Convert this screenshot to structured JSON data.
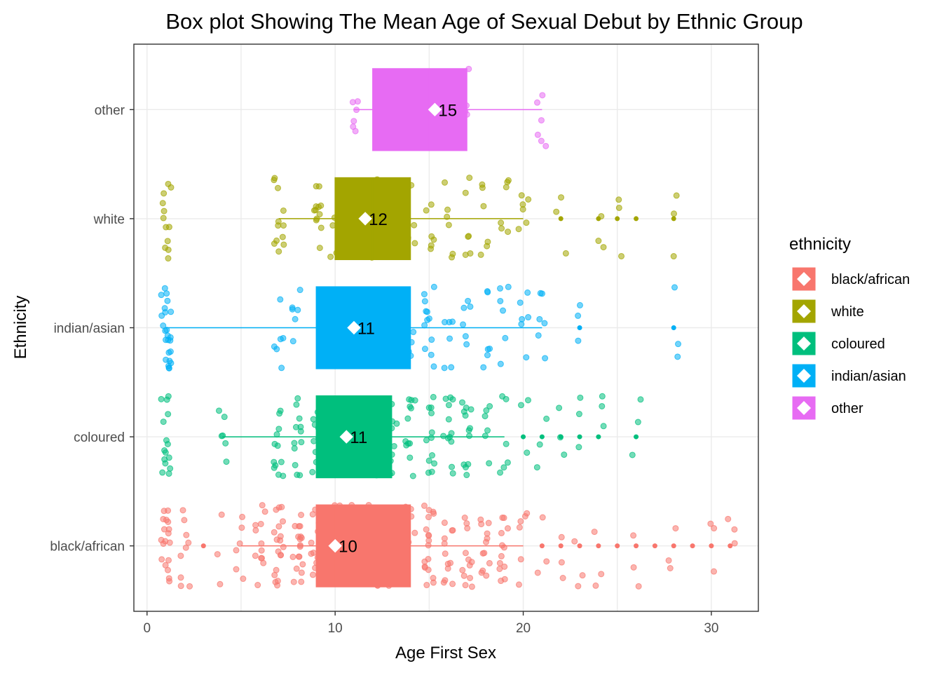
{
  "chart_data": {
    "type": "boxplot",
    "orientation": "horizontal",
    "title": "Box plot Showing The Mean Age of Sexual Debut by Ethnic Group",
    "xlabel": "Age First Sex",
    "ylabel": "Ethnicity",
    "xlim": [
      -0.7,
      32.5
    ],
    "xticks": [
      0,
      10,
      20,
      30
    ],
    "categories": [
      "black/african",
      "coloured",
      "indian/asian",
      "white",
      "other"
    ],
    "grid": true,
    "legend": {
      "title": "ethnicity",
      "position": "right",
      "entries": [
        "black/african",
        "white",
        "coloured",
        "indian/asian",
        "other"
      ]
    },
    "series": [
      {
        "name": "black/african",
        "color": "#F8766D",
        "whisker_low": 5,
        "q1": 9,
        "median": 10,
        "q3": 14,
        "whisker_high": 20,
        "mean": 10,
        "mean_label": "10",
        "outliers": [
          3,
          21,
          22,
          23,
          24,
          25,
          26,
          27,
          28,
          29,
          30,
          31
        ],
        "jitter_values": [
          1,
          1,
          1,
          1,
          1,
          1,
          2,
          2,
          2,
          4,
          5,
          6,
          6,
          7,
          7,
          7,
          8,
          8,
          8,
          9,
          9,
          9,
          10,
          10,
          10,
          11,
          11,
          11,
          12,
          12,
          13,
          13,
          14,
          15,
          15,
          15,
          16,
          16,
          17,
          17,
          18,
          18,
          19,
          19,
          20,
          21,
          22,
          23,
          24,
          26,
          28,
          30,
          31
        ]
      },
      {
        "name": "coloured",
        "color": "#00BF7D",
        "whisker_low": 4,
        "q1": 9,
        "median": 11,
        "q3": 13,
        "whisker_high": 19,
        "mean": 10.6,
        "mean_label": "11",
        "outliers": [
          20,
          21,
          22,
          23,
          24,
          26
        ],
        "jitter_values": [
          1,
          1,
          1,
          1,
          1,
          4,
          7,
          7,
          8,
          8,
          9,
          9,
          10,
          10,
          11,
          11,
          12,
          12,
          13,
          13,
          14,
          14,
          15,
          15,
          16,
          16,
          17,
          17,
          18,
          19,
          20,
          21,
          22,
          23,
          24,
          26
        ]
      },
      {
        "name": "indian/asian",
        "color": "#00B0F6",
        "whisker_low": 1,
        "q1": 9,
        "median": 11,
        "q3": 14,
        "whisker_high": 21,
        "mean": 11,
        "mean_label": "11",
        "outliers": [
          23,
          28
        ],
        "jitter_values": [
          1,
          1,
          1,
          1,
          7,
          8,
          11,
          14,
          15,
          15,
          16,
          17,
          18,
          19,
          20,
          21,
          23,
          28
        ]
      },
      {
        "name": "white",
        "color": "#A3A500",
        "whisker_low": 7,
        "q1": 10,
        "median": 12,
        "q3": 14,
        "whisker_high": 20,
        "mean": 11.6,
        "mean_label": "12",
        "outliers": [
          22,
          24,
          25,
          26,
          28
        ],
        "jitter_values": [
          1,
          1,
          1,
          1,
          7,
          7,
          9,
          9,
          10,
          12,
          14,
          15,
          16,
          17,
          18,
          19,
          20,
          22,
          24,
          25,
          28
        ]
      },
      {
        "name": "other",
        "color": "#E76BF3",
        "whisker_low": 11,
        "q1": 12,
        "median": 15,
        "q3": 17,
        "whisker_high": 21,
        "mean": 15.3,
        "mean_label": "15",
        "outliers": [],
        "jitter_values": [
          11,
          17,
          21
        ]
      }
    ]
  }
}
